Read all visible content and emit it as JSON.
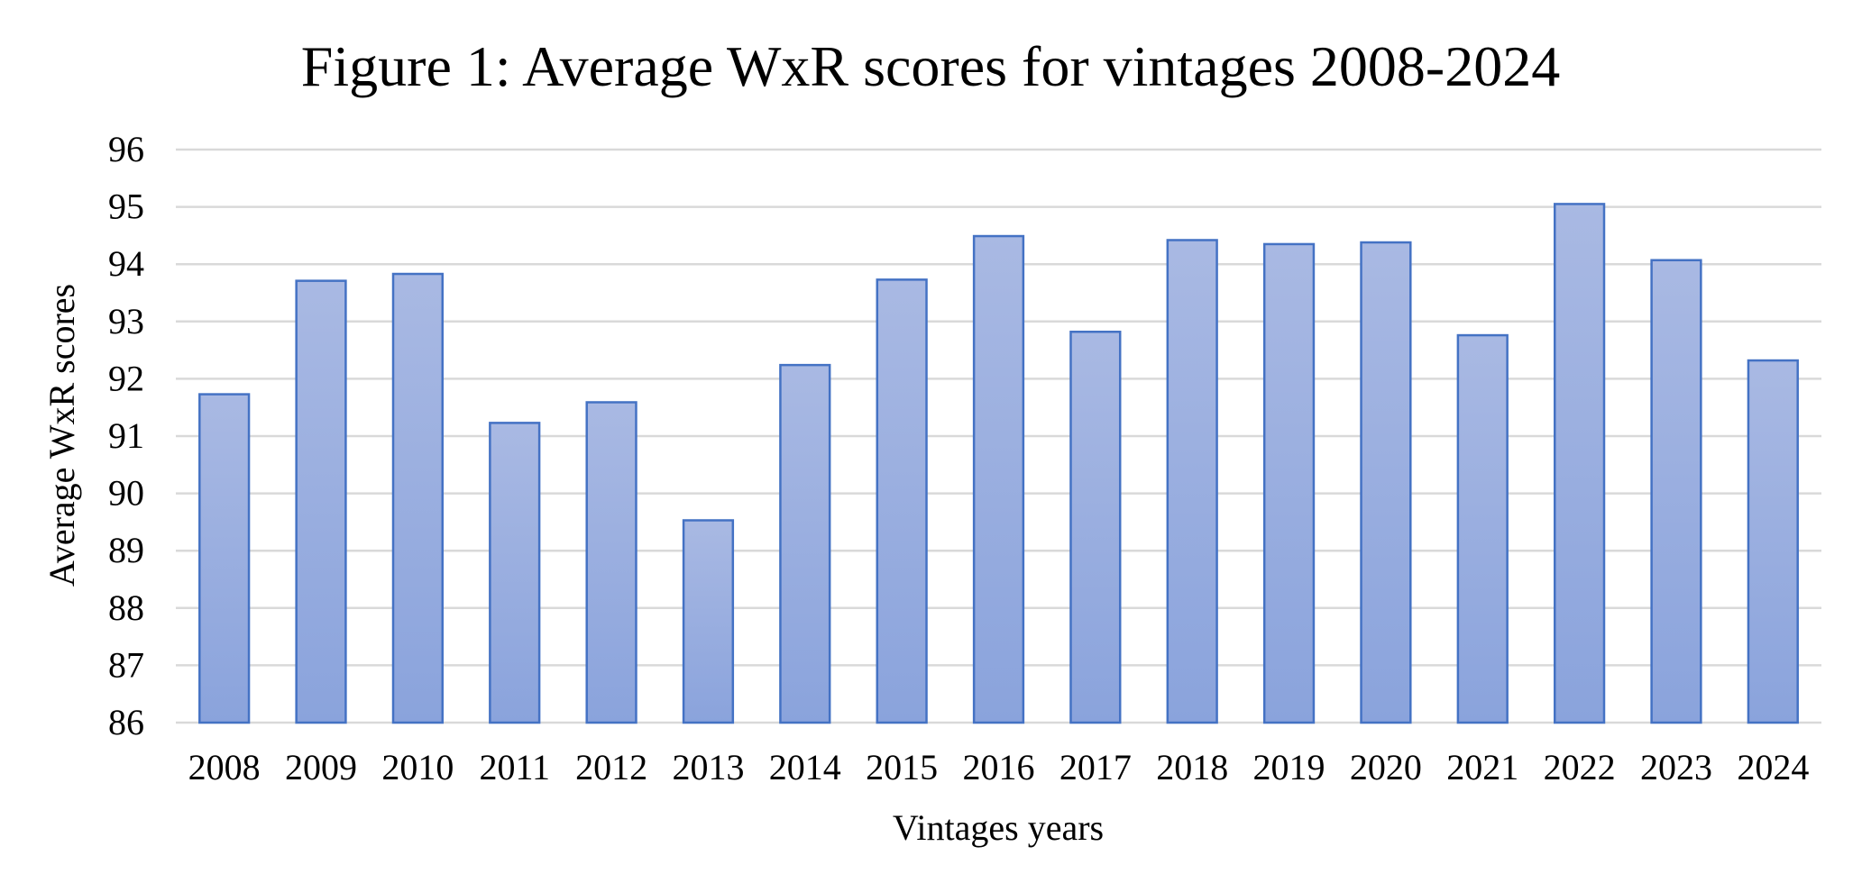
{
  "chart_data": {
    "type": "bar",
    "title": "Figure 1: Average WxR scores for vintages 2008-2024",
    "xlabel": "Vintages years",
    "ylabel": "Average WxR scores",
    "categories": [
      "2008",
      "2009",
      "2010",
      "2011",
      "2012",
      "2013",
      "2014",
      "2015",
      "2016",
      "2017",
      "2018",
      "2019",
      "2020",
      "2021",
      "2022",
      "2023",
      "2024"
    ],
    "values": [
      91.73,
      93.71,
      93.83,
      91.23,
      91.59,
      89.53,
      92.24,
      93.73,
      94.49,
      92.82,
      94.42,
      94.35,
      94.38,
      92.76,
      95.05,
      94.07,
      92.32
    ],
    "ylim": [
      86,
      96
    ],
    "yticks": [
      "86",
      "87",
      "88",
      "89",
      "90",
      "91",
      "92",
      "93",
      "94",
      "95",
      "96"
    ],
    "grid": true,
    "legend": "none",
    "colors": {
      "bar_fill_top": "#a9b9e3",
      "bar_fill_bottom": "#8aa3dc",
      "bar_stroke": "#4472c4",
      "grid": "#d9d9d9"
    }
  }
}
